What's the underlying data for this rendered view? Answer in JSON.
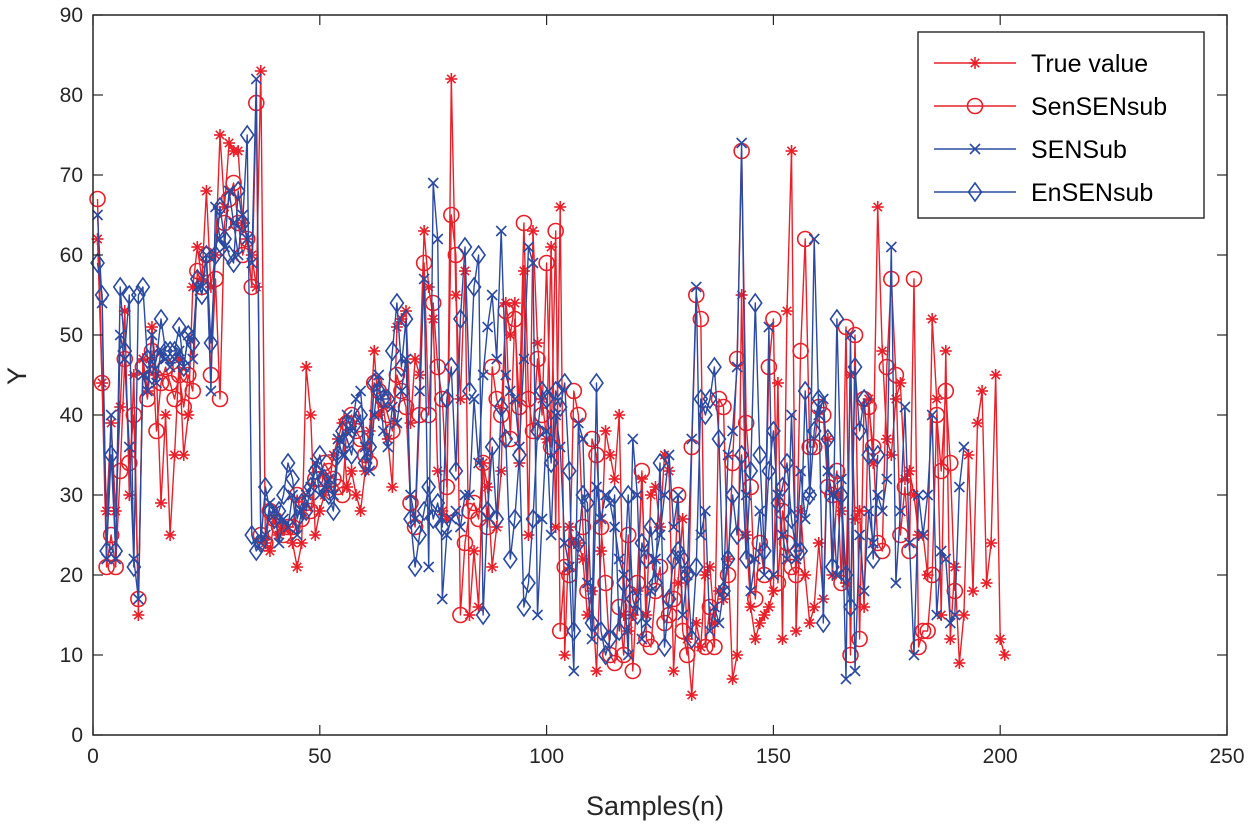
{
  "chart_data": {
    "type": "line",
    "title": "",
    "xlabel": "Samples(n)",
    "ylabel": "Y",
    "xlim": [
      0,
      250
    ],
    "ylim": [
      0,
      90
    ],
    "xticks": [
      0,
      50,
      100,
      150,
      200,
      250
    ],
    "yticks": [
      0,
      10,
      20,
      30,
      40,
      50,
      60,
      70,
      80,
      90
    ],
    "legend_position": "top-right",
    "series": [
      {
        "name": "True value",
        "color": "#e8202a",
        "marker": "asterisk",
        "values": [
          62,
          44,
          28,
          39,
          28,
          41,
          53,
          30,
          45,
          15,
          47,
          43,
          51,
          45,
          29,
          40,
          25,
          35,
          47,
          35,
          40,
          56,
          61,
          57,
          68,
          56,
          60,
          75,
          66,
          74,
          73,
          73,
          64,
          62,
          60,
          56,
          83,
          24,
          23,
          27,
          25,
          26,
          26,
          24,
          21,
          24,
          46,
          40,
          25,
          28,
          30,
          31,
          35,
          37,
          39,
          31,
          33,
          30,
          28,
          33,
          38,
          48,
          40,
          41,
          37,
          31,
          51,
          52,
          53,
          39,
          47,
          45,
          63,
          56,
          52,
          33,
          28,
          27,
          82,
          55,
          42,
          58,
          15,
          23,
          16,
          34,
          31,
          21,
          26,
          33,
          54,
          50,
          54,
          34,
          58,
          25,
          63,
          49,
          42,
          37,
          61,
          26,
          66,
          10,
          26,
          24,
          24,
          22,
          15,
          18,
          8,
          23,
          38,
          35,
          32,
          40,
          15,
          13,
          15,
          18,
          32,
          15,
          30,
          31,
          26,
          35,
          33,
          8,
          19,
          27,
          12,
          5,
          14,
          11,
          20,
          21,
          14,
          18,
          17,
          22,
          7,
          10,
          55,
          25,
          16,
          12,
          14,
          15,
          16,
          18,
          44,
          12,
          53,
          73,
          13,
          28,
          20,
          14,
          16,
          24,
          17,
          37,
          20,
          30,
          28,
          19,
          45,
          27,
          28,
          16,
          42,
          34,
          66,
          48,
          37,
          35,
          42,
          44,
          32,
          33,
          30,
          25,
          25,
          20,
          52,
          42,
          15,
          48,
          12,
          21,
          9,
          15,
          35,
          18,
          39,
          43,
          19,
          24,
          45,
          12,
          10
        ],
        "x_start": 1
      },
      {
        "name": "SenSENsub",
        "color": "#e8202a",
        "marker": "circle",
        "values": [
          67,
          44,
          21,
          25,
          21,
          33,
          47,
          34,
          40,
          17,
          46,
          42,
          48,
          38,
          44,
          46,
          44,
          42,
          45,
          41,
          45,
          43,
          58,
          56,
          60,
          45,
          57,
          42,
          64,
          67,
          69,
          64,
          60,
          62,
          56,
          79,
          25,
          24,
          28,
          27,
          26,
          25,
          26,
          26,
          30,
          27,
          29,
          28,
          32,
          32,
          34,
          33,
          32,
          31,
          30,
          39,
          40,
          38,
          37,
          35,
          34,
          44,
          43,
          42,
          40,
          38,
          45,
          43,
          41,
          29,
          26,
          40,
          59,
          40,
          54,
          46,
          42,
          31,
          65,
          60,
          15,
          24,
          28,
          29,
          27,
          34,
          26,
          46,
          42,
          40,
          53,
          37,
          52,
          41,
          64,
          42,
          38,
          47,
          40,
          59,
          36,
          63,
          13,
          21,
          20,
          43,
          40,
          26,
          18,
          37,
          35,
          26,
          19,
          10,
          9,
          16,
          10,
          25,
          8,
          19,
          33,
          12,
          11,
          18,
          21,
          14,
          15,
          17,
          30,
          13,
          10,
          36,
          55,
          52,
          11,
          16,
          11,
          42,
          41,
          20,
          34,
          47,
          73,
          39,
          31,
          17,
          24,
          20,
          46,
          52,
          19,
          28,
          24,
          21,
          20,
          48,
          62,
          36,
          36,
          41,
          40,
          31,
          30,
          33,
          19,
          51,
          10,
          50,
          12,
          42,
          41,
          36,
          24,
          23,
          46,
          57,
          45,
          25,
          31,
          23,
          57,
          11,
          13,
          13,
          20,
          40,
          33,
          43,
          34,
          18
        ],
        "x_start": 1
      },
      {
        "name": "SENSub",
        "color": "#2b4aa0",
        "marker": "x",
        "values": [
          65,
          54,
          22,
          40,
          22,
          50,
          47,
          36,
          22,
          17,
          45,
          43,
          50,
          44,
          48,
          47,
          46,
          47,
          48,
          46,
          50,
          47,
          56,
          56,
          60,
          43,
          66,
          62,
          61,
          68,
          64,
          60,
          65,
          62,
          59,
          82,
          24,
          25,
          29,
          28,
          24,
          27,
          26,
          30,
          25,
          28,
          30,
          31,
          34,
          30,
          31,
          32,
          30,
          37,
          35,
          40,
          38,
          42,
          43,
          36,
          33,
          40,
          45,
          38,
          36,
          41,
          39,
          43,
          47,
          30,
          27,
          43,
          57,
          21,
          69,
          62,
          17,
          25,
          27,
          28,
          26,
          30,
          30,
          42,
          34,
          45,
          51,
          55,
          47,
          63,
          45,
          43,
          42,
          36,
          47,
          61,
          59,
          15,
          27,
          38,
          25,
          40,
          36,
          24,
          21,
          8,
          39,
          37,
          19,
          12,
          31,
          27,
          30,
          29,
          26,
          22,
          20,
          10,
          37,
          30,
          12,
          14,
          18,
          22,
          25,
          30,
          35,
          26,
          30,
          15,
          20,
          37,
          56,
          25,
          28,
          13,
          16,
          14,
          18,
          35,
          38,
          46,
          74,
          30,
          18,
          22,
          28,
          20,
          51,
          20,
          30,
          25,
          22,
          40,
          22,
          33,
          27,
          30,
          62,
          40,
          42,
          33,
          30,
          20,
          32,
          7,
          50,
          8,
          25,
          18,
          28,
          24,
          30,
          28,
          32,
          61,
          19,
          28,
          41,
          24,
          10,
          30,
          25,
          30,
          40,
          15,
          23,
          22,
          14,
          15,
          31,
          36
        ],
        "x_start": 1
      },
      {
        "name": "EnSENsub",
        "color": "#2b4aa0",
        "marker": "diamond",
        "values": [
          59,
          55,
          23,
          35,
          23,
          56,
          48,
          55,
          21,
          55,
          56,
          47,
          45,
          47,
          52,
          48,
          48,
          48,
          51,
          46,
          50,
          49,
          57,
          55,
          60,
          49,
          60,
          66,
          62,
          60,
          59,
          68,
          64,
          75,
          25,
          23,
          24,
          31,
          28,
          27,
          28,
          30,
          34,
          32,
          27,
          29,
          28,
          31,
          33,
          35,
          32,
          30,
          28,
          35,
          38,
          37,
          35,
          39,
          40,
          34,
          36,
          44,
          43,
          42,
          42,
          48,
          54,
          46,
          52,
          27,
          21,
          25,
          28,
          31,
          27,
          29,
          26,
          42,
          46,
          33,
          52,
          61,
          43,
          56,
          60,
          15,
          28,
          36,
          27,
          41,
          37,
          22,
          27,
          35,
          16,
          19,
          27,
          38,
          43,
          42,
          34,
          43,
          41,
          44,
          33,
          13,
          24,
          30,
          29,
          14,
          44,
          13,
          10,
          12,
          30,
          13,
          19,
          30,
          17,
          15,
          24,
          22,
          26,
          19,
          34,
          11,
          17,
          22,
          23,
          22,
          20,
          12,
          21,
          42,
          40,
          42,
          46,
          37,
          18,
          22,
          30,
          25,
          35,
          22,
          33,
          54,
          35,
          23,
          33,
          38,
          29,
          31,
          34,
          27,
          23,
          23,
          43,
          30,
          38,
          42,
          14,
          37,
          21,
          52,
          30,
          20,
          16,
          46,
          38,
          42,
          35,
          22,
          35
        ],
        "x_start": 1
      }
    ]
  }
}
